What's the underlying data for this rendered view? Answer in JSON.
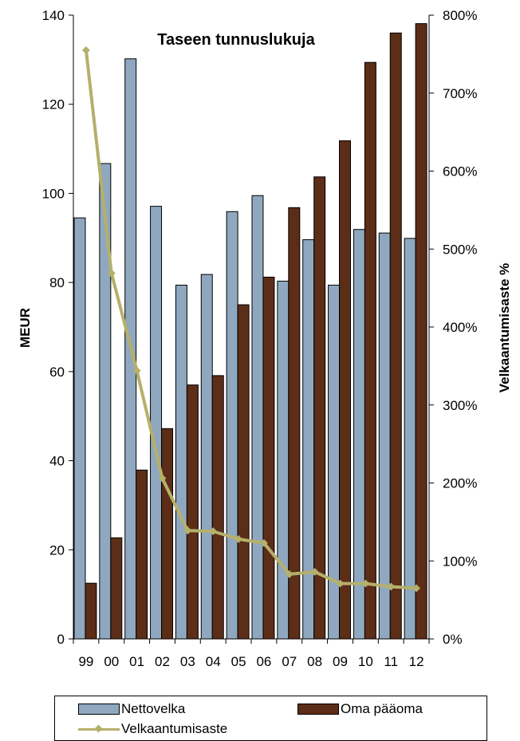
{
  "chart_data": {
    "type": "bar",
    "title": "Taseen tunnuslukuja",
    "categories": [
      "99",
      "00",
      "01",
      "02",
      "03",
      "04",
      "05",
      "06",
      "07",
      "08",
      "09",
      "10",
      "11",
      "12"
    ],
    "ylabel": "MEUR",
    "y2label": "Velkaantumisaste %",
    "ylim": [
      0,
      140
    ],
    "y2lim": [
      0,
      8
    ],
    "y_ticks": [
      "0",
      "20",
      "40",
      "60",
      "80",
      "100",
      "120",
      "140"
    ],
    "y2_ticks": [
      "0%",
      "100%",
      "200%",
      "300%",
      "400%",
      "500%",
      "600%",
      "700%",
      "800%"
    ],
    "series": [
      {
        "name": "Nettovelka",
        "type": "bar",
        "axis": "left",
        "color": "#8fa8bf",
        "values": [
          94.5,
          106.7,
          130.2,
          97.1,
          79.4,
          81.8,
          95.9,
          99.5,
          80.3,
          89.6,
          79.4,
          91.9,
          91.1,
          89.9
        ]
      },
      {
        "name": "Oma pääoma",
        "type": "bar",
        "axis": "left",
        "color": "#5c2d17",
        "values": [
          12.5,
          22.7,
          37.9,
          47.2,
          57.0,
          59.1,
          75.0,
          81.2,
          96.8,
          103.7,
          111.8,
          129.4,
          136.0,
          138.1
        ]
      },
      {
        "name": "Velkaantumisaste",
        "type": "line",
        "axis": "right",
        "color": "#b5b06a",
        "values": [
          7.55,
          4.69,
          3.44,
          2.06,
          1.39,
          1.38,
          1.28,
          1.23,
          0.83,
          0.86,
          0.71,
          0.71,
          0.67,
          0.65
        ]
      }
    ],
    "legend": "bottom",
    "grid": false
  }
}
